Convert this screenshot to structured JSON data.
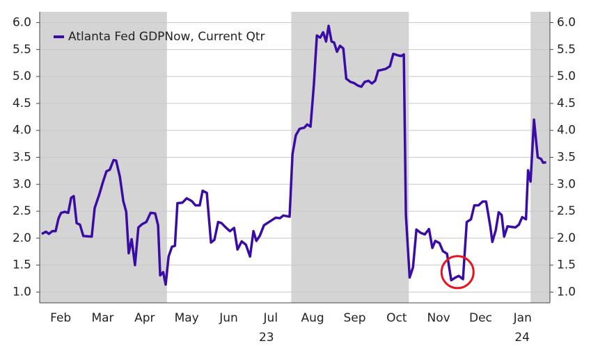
{
  "chart_data": {
    "type": "line",
    "legend": "upper left",
    "grid": true,
    "x": [
      0.05,
      0.15,
      0.22,
      0.3,
      0.38,
      0.45,
      0.51,
      0.6,
      0.68,
      0.75,
      0.81,
      0.88,
      0.96,
      1.04,
      1.24,
      1.31,
      1.41,
      1.51,
      1.59,
      1.67,
      1.76,
      1.82,
      1.91,
      1.99,
      2.06,
      2.12,
      2.19,
      2.27,
      2.35,
      2.44,
      2.54,
      2.64,
      2.75,
      2.82,
      2.87,
      2.94,
      3.0,
      3.07,
      3.15,
      3.22,
      3.28,
      3.4,
      3.5,
      3.62,
      3.71,
      3.81,
      3.88,
      3.98,
      4.08,
      4.16,
      4.25,
      4.33,
      4.43,
      4.53,
      4.63,
      4.71,
      4.81,
      4.91,
      5.01,
      5.09,
      5.16,
      5.24,
      5.34,
      5.42,
      5.52,
      5.62,
      5.72,
      5.8,
      5.95,
      6.02,
      6.1,
      6.19,
      6.3,
      6.37,
      6.45,
      6.53,
      6.6,
      6.68,
      6.75,
      6.82,
      6.88,
      6.95,
      7.01,
      7.08,
      7.15,
      7.23,
      7.3,
      7.4,
      7.48,
      7.58,
      7.66,
      7.74,
      7.83,
      7.91,
      7.99,
      8.06,
      8.13,
      8.24,
      8.34,
      8.42,
      8.54,
      8.61,
      8.67,
      8.72,
      8.81,
      8.89,
      8.97,
      9.07,
      9.17,
      9.27,
      9.35,
      9.42,
      9.52,
      9.6,
      9.7,
      9.8,
      9.9,
      9.98,
      10.08,
      10.17,
      10.27,
      10.35,
      10.45,
      10.55,
      10.63,
      10.73,
      10.78,
      10.86,
      10.93,
      11.0,
      11.06,
      11.14,
      11.23,
      11.33,
      11.41,
      11.49,
      11.58,
      11.63,
      11.69,
      11.77,
      11.86,
      11.94,
      11.99,
      12.06
    ],
    "series": [
      {
        "name": "Atlanta Fed GDPNow, Current Qtr",
        "color": "#3a0ca3",
        "values": [
          2.08,
          2.12,
          2.08,
          2.13,
          2.13,
          2.37,
          2.47,
          2.49,
          2.47,
          2.75,
          2.78,
          2.28,
          2.25,
          2.04,
          2.03,
          2.56,
          2.79,
          3.05,
          3.24,
          3.27,
          3.45,
          3.44,
          3.14,
          2.69,
          2.49,
          1.72,
          1.98,
          1.5,
          2.2,
          2.26,
          2.3,
          2.47,
          2.46,
          2.24,
          1.31,
          1.37,
          1.14,
          1.66,
          1.84,
          1.86,
          2.65,
          2.66,
          2.74,
          2.69,
          2.61,
          2.61,
          2.88,
          2.84,
          1.92,
          1.97,
          2.3,
          2.28,
          2.2,
          2.13,
          2.19,
          1.79,
          1.94,
          1.88,
          1.66,
          2.13,
          1.95,
          2.04,
          2.24,
          2.28,
          2.33,
          2.38,
          2.37,
          2.42,
          2.4,
          3.56,
          3.91,
          4.03,
          4.05,
          4.11,
          4.07,
          4.85,
          5.76,
          5.72,
          5.82,
          5.65,
          5.94,
          5.65,
          5.63,
          5.46,
          5.57,
          5.52,
          4.96,
          4.9,
          4.88,
          4.83,
          4.81,
          4.9,
          4.92,
          4.87,
          4.92,
          5.11,
          5.12,
          5.14,
          5.19,
          5.42,
          5.39,
          5.38,
          5.41,
          2.43,
          1.27,
          1.46,
          2.16,
          2.1,
          2.07,
          2.17,
          1.82,
          1.95,
          1.91,
          1.76,
          1.71,
          1.22,
          1.27,
          1.3,
          1.24,
          2.3,
          2.35,
          2.61,
          2.61,
          2.68,
          2.68,
          2.22,
          1.93,
          2.15,
          2.48,
          2.43,
          2.03,
          2.22,
          2.21,
          2.2,
          2.25,
          2.39,
          2.35,
          3.26,
          3.05,
          4.2,
          3.5,
          3.47,
          3.4,
          3.41
        ]
      }
    ],
    "xlim": [
      0,
      12.15
    ],
    "xticks": [
      {
        "value": 0.5,
        "label": "Feb"
      },
      {
        "value": 1.5,
        "label": "Mar"
      },
      {
        "value": 2.5,
        "label": "Apr"
      },
      {
        "value": 3.5,
        "label": "May"
      },
      {
        "value": 4.5,
        "label": "Jun"
      },
      {
        "value": 5.5,
        "label": "Jul"
      },
      {
        "value": 6.5,
        "label": "Aug"
      },
      {
        "value": 7.5,
        "label": "Sep"
      },
      {
        "value": 8.5,
        "label": "Oct"
      },
      {
        "value": 9.5,
        "label": "Nov"
      },
      {
        "value": 10.5,
        "label": "Dec"
      },
      {
        "value": 11.5,
        "label": "Jan"
      }
    ],
    "x_year_labels": [
      {
        "value": 5.4,
        "label": "23"
      },
      {
        "value": 11.49,
        "label": "24"
      }
    ],
    "ylim": [
      0.8,
      6.2
    ],
    "yticks": [
      {
        "value": 1,
        "label": "1.0"
      },
      1.5,
      {
        "value": 2,
        "label": "2.0"
      },
      2.5,
      {
        "value": 3,
        "label": "3.0"
      },
      3.5,
      {
        "value": 4,
        "label": "4.0"
      },
      4.5,
      {
        "value": 5,
        "label": "5.0"
      },
      5.5,
      {
        "value": 6,
        "label": "6.0"
      }
    ],
    "y2lim": [
      0.8,
      6.2
    ],
    "y2ticks": [
      {
        "value": 1,
        "label": "1.0"
      },
      1.5,
      {
        "value": 2,
        "label": "2.0"
      },
      2.5,
      {
        "value": 3,
        "label": "3.0"
      },
      3.5,
      {
        "value": 4,
        "label": "4.0"
      },
      4.5,
      {
        "value": 5,
        "label": "5.0"
      },
      5.5,
      {
        "value": 6,
        "label": "6.0"
      }
    ],
    "shaded_spans": [
      [
        0,
        3.03
      ],
      [
        5.99,
        8.79
      ],
      [
        11.69,
        12.15
      ]
    ],
    "shade_color": "#d4d4d4",
    "highlight": {
      "x": 9.95,
      "y": 1.37,
      "color": "#e8141c"
    }
  }
}
